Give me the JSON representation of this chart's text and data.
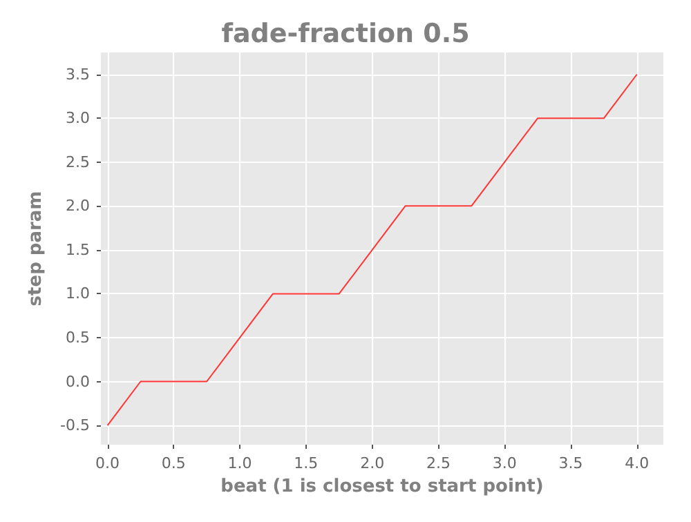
{
  "chart_data": {
    "type": "line",
    "title": "fade-fraction 0.5",
    "xlabel": "beat (1 is closest to start point)",
    "ylabel": "step param",
    "x": [
      0,
      0.25,
      0.75,
      1.25,
      1.75,
      2.25,
      2.75,
      3.25,
      3.75,
      4
    ],
    "series": [
      {
        "color": "#ff3333",
        "values": [
          -0.5,
          0,
          0,
          1,
          1,
          2,
          2,
          3,
          3,
          3.5
        ]
      }
    ],
    "xlim": [
      -0.05,
      4.2
    ],
    "xticks": [
      {
        "value": 0,
        "label": "0.0"
      },
      0.5,
      {
        "value": 1,
        "label": "1.0"
      },
      1.5,
      {
        "value": 2,
        "label": "2.0"
      },
      2.5,
      {
        "value": 3,
        "label": "3.0"
      },
      3.5,
      {
        "value": 4,
        "label": "4.0"
      }
    ],
    "ylim": [
      -0.72,
      3.75
    ],
    "yticks": [
      -0.5,
      {
        "value": 0,
        "label": "0.0"
      },
      0.5,
      {
        "value": 1,
        "label": "1.0"
      },
      1.5,
      {
        "value": 2,
        "label": "2.0"
      },
      2.5,
      {
        "value": 3,
        "label": "3.0"
      },
      3.5
    ],
    "grid": true,
    "marker": "none",
    "line_style": "solid"
  }
}
